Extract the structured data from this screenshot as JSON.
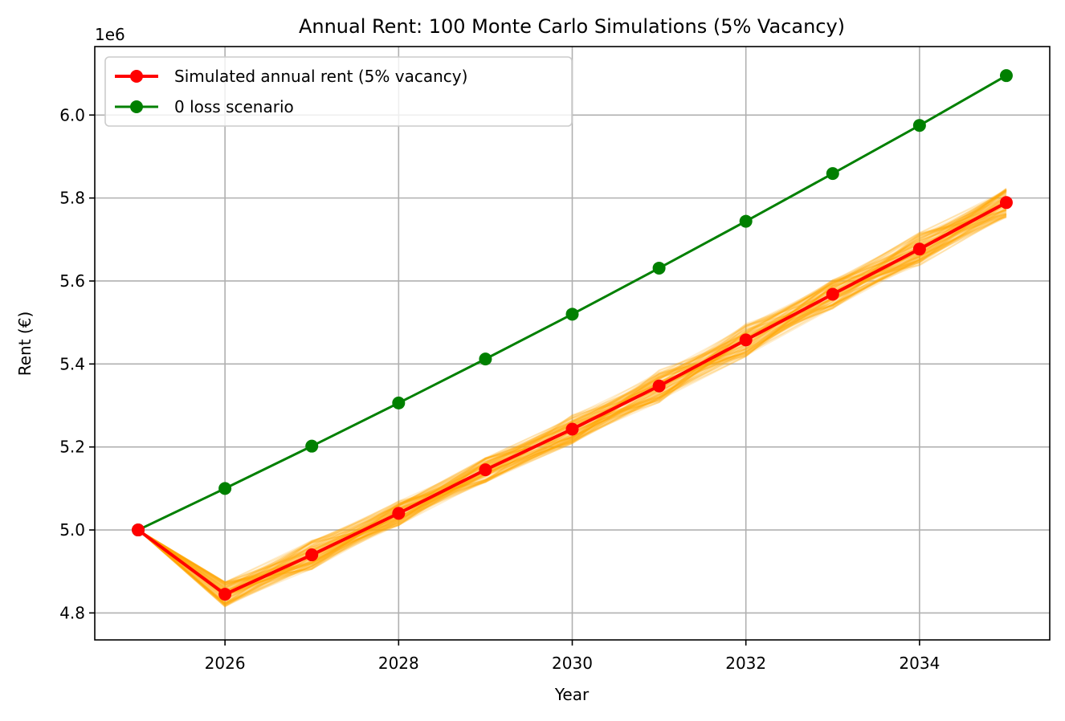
{
  "chart_data": {
    "type": "line",
    "title": "Annual Rent: 100 Monte Carlo Simulations (5% Vacancy)",
    "xlabel": "Year",
    "ylabel": "Rent (€)",
    "y_offset_label": "1e6",
    "xlim": [
      2024.5,
      2035.5
    ],
    "ylim": [
      4.735,
      6.165
    ],
    "x_ticks": [
      2026,
      2028,
      2030,
      2032,
      2034
    ],
    "y_ticks": [
      4.8,
      5.0,
      5.2,
      5.4,
      5.6,
      5.8,
      6.0
    ],
    "y_tick_labels": [
      "4.8",
      "5.0",
      "5.2",
      "5.4",
      "5.6",
      "5.8",
      "6.0"
    ],
    "grid": true,
    "legend_position": "top-left",
    "x": [
      2025,
      2026,
      2027,
      2028,
      2029,
      2030,
      2031,
      2032,
      2033,
      2034,
      2035
    ],
    "series": [
      {
        "name": "Simulated annual rent (5% vacancy)",
        "color": "#ff0000",
        "marker": "circle",
        "values": [
          5.0,
          4.845,
          4.94,
          5.04,
          5.145,
          5.243,
          5.347,
          5.458,
          5.568,
          5.677,
          5.789
        ]
      },
      {
        "name": "0 loss scenario",
        "color": "#008000",
        "marker": "circle",
        "values": [
          5.0,
          5.1,
          5.202,
          5.306,
          5.412,
          5.52,
          5.631,
          5.744,
          5.859,
          5.975,
          6.095
        ]
      }
    ],
    "simulation_band": {
      "count": 100,
      "color": "#ffa500",
      "approx_spread_by_year": [
        0.0,
        0.03,
        0.035,
        0.03,
        0.03,
        0.035,
        0.04,
        0.04,
        0.035,
        0.04,
        0.035
      ]
    }
  }
}
